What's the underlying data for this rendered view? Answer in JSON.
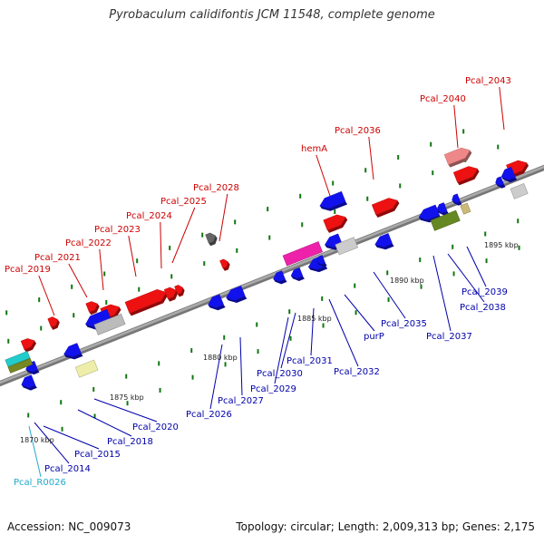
{
  "title": "Pyrobaculum calidifontis JCM 11548, complete genome",
  "footer": {
    "accession": "Accession: NC_009073",
    "topology": "Topology: circular; Length: 2,009,313 bp; Genes: 2,175"
  },
  "colors": {
    "backbone": "#999999",
    "forward_label": "#cc0000",
    "reverse_label": "#0000aa",
    "rna_label": "#22aacc",
    "tick": "#117711"
  },
  "kbp_labels": [
    "1870 kbp",
    "1875 kbp",
    "1880 kbp",
    "1885 kbp",
    "1890 kbp",
    "1895 kbp"
  ],
  "forward_labels": [
    "Pcal_2019",
    "Pcal_2021",
    "Pcal_2022",
    "Pcal_2023",
    "Pcal_2024",
    "Pcal_2025",
    "Pcal_2028",
    "hemA",
    "Pcal_2036",
    "Pcal_2040",
    "Pcal_2043"
  ],
  "reverse_labels": [
    "Pcal_R0026",
    "Pcal_2014",
    "Pcal_2015",
    "Pcal_2018",
    "Pcal_2020",
    "Pcal_2026",
    "Pcal_2027",
    "Pcal_2029",
    "Pcal_2030",
    "Pcal_2031",
    "Pcal_2032",
    "purP",
    "Pcal_2035",
    "Pcal_2037",
    "Pcal_2038",
    "Pcal_2039"
  ]
}
